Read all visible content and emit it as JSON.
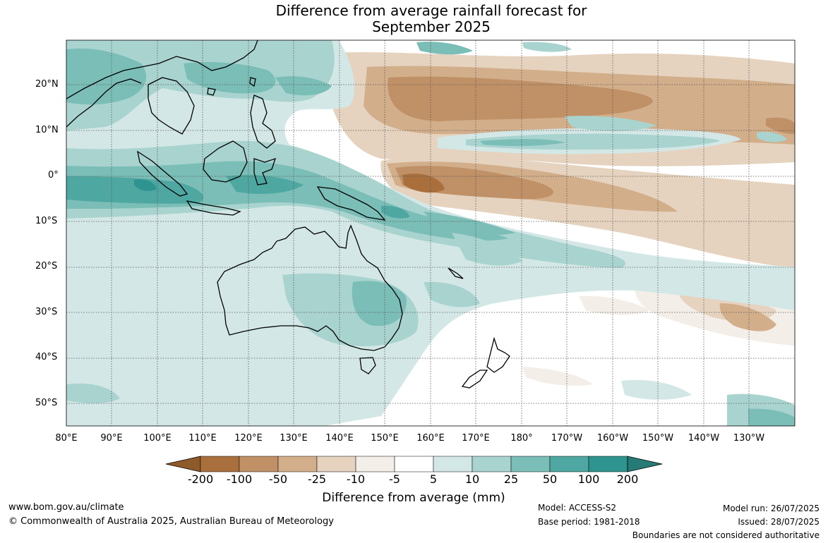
{
  "title": {
    "line1": "Difference from average rainfall forecast for",
    "line2": "September 2025"
  },
  "latitude_labels": [
    "20°N",
    "10°N",
    "0°",
    "10°S",
    "20°S",
    "30°S",
    "40°S",
    "50°S"
  ],
  "longitude_labels": [
    "80°E",
    "90°E",
    "100°E",
    "110°E",
    "120°E",
    "130°E",
    "140°E",
    "150°E",
    "160°E",
    "170°E",
    "180°",
    "170°W",
    "160°W",
    "150°W",
    "140°W",
    "130°W"
  ],
  "colorbar": {
    "title": "Difference from average (mm)",
    "tick_labels": [
      "-200",
      "-100",
      "-50",
      "-25",
      "-10",
      "-5",
      "5",
      "10",
      "25",
      "50",
      "100",
      "200"
    ],
    "colors": [
      "#8f5a2a",
      "#a9703d",
      "#c09066",
      "#d2ae8a",
      "#e6d3bf",
      "#f3eee8",
      "#ffffff",
      "#d3e8e6",
      "#a9d3cf",
      "#7bbdb7",
      "#4fa7a1",
      "#2f948f",
      "#267b77"
    ]
  },
  "footer": {
    "website": "www.bom.gov.au/climate",
    "copyright": "© Commonwealth of Australia 2025, Australian Bureau of Meteorology",
    "model": "Model: ACCESS-S2",
    "base_period": "Base period: 1981-2018",
    "model_run": "Model run: 26/07/2025",
    "issued": "Issued: 28/07/2025",
    "disclaimer": "Boundaries are not considered authoritative"
  }
}
